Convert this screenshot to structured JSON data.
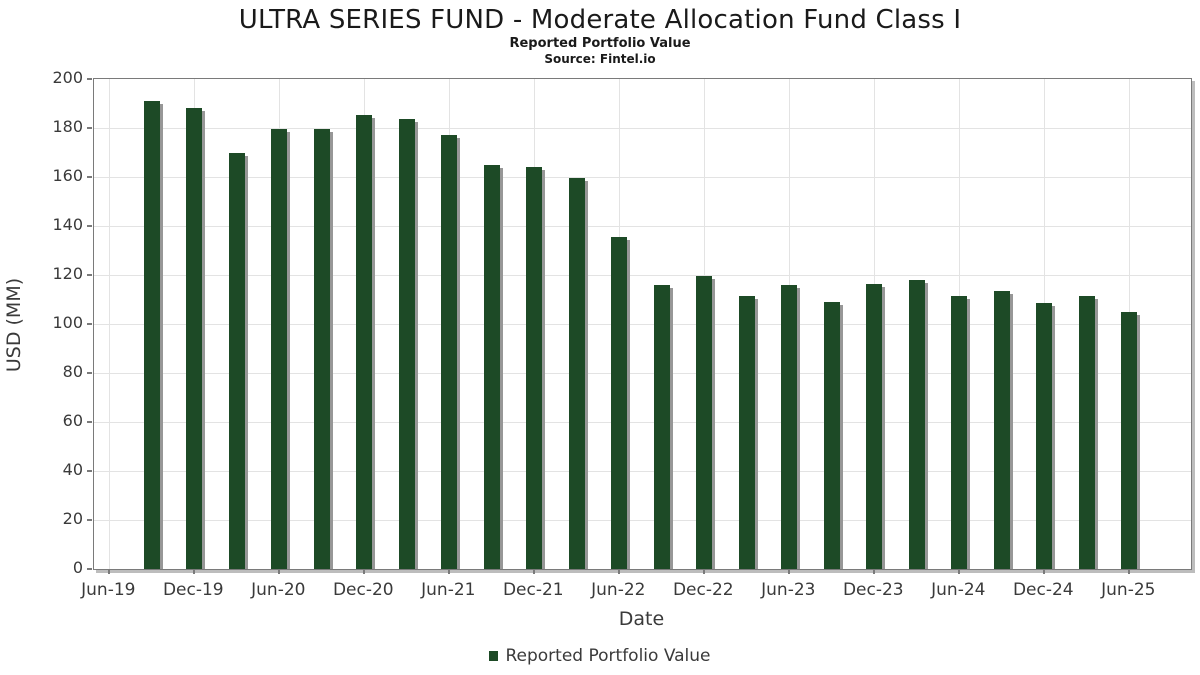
{
  "header": {
    "title": "ULTRA SERIES FUND - Moderate Allocation Fund Class I",
    "subtitle": "Reported Portfolio Value",
    "source": "Source: Fintel.io"
  },
  "chart_data": {
    "type": "bar",
    "title": "ULTRA SERIES FUND - Moderate Allocation Fund Class I",
    "subtitle": "Reported Portfolio Value",
    "source": "Source: Fintel.io",
    "xlabel": "Date",
    "ylabel": "USD (MM)",
    "ylim": [
      0,
      200
    ],
    "y_ticks": [
      0,
      20,
      40,
      60,
      80,
      100,
      120,
      140,
      160,
      180,
      200
    ],
    "grid": true,
    "bar_color": "#1d4a26",
    "categories": [
      "Sep-19",
      "Dec-19",
      "Mar-20",
      "Jun-20",
      "Sep-20",
      "Dec-20",
      "Mar-21",
      "Jun-21",
      "Sep-21",
      "Dec-21",
      "Mar-22",
      "Jun-22",
      "Sep-22",
      "Dec-22",
      "Mar-23",
      "Jun-23",
      "Sep-23",
      "Dec-23",
      "Mar-24",
      "Jun-24",
      "Sep-24",
      "Dec-24",
      "Mar-25",
      "Jun-25"
    ],
    "values": [
      191,
      188,
      170,
      179.5,
      179.5,
      185.5,
      183.5,
      177,
      165,
      164,
      159.5,
      135.5,
      116,
      119.5,
      111.5,
      116,
      109,
      116.5,
      118,
      111.5,
      113.5,
      108.5,
      111.5,
      105
    ],
    "x_tick_labels": [
      "Jun-19",
      "Dec-19",
      "Jun-20",
      "Dec-20",
      "Jun-21",
      "Dec-21",
      "Jun-22",
      "Dec-22",
      "Jun-23",
      "Dec-23",
      "Jun-24",
      "Dec-24",
      "Jun-25"
    ],
    "legend": {
      "position": "bottom-center",
      "label": "Reported Portfolio Value"
    }
  }
}
